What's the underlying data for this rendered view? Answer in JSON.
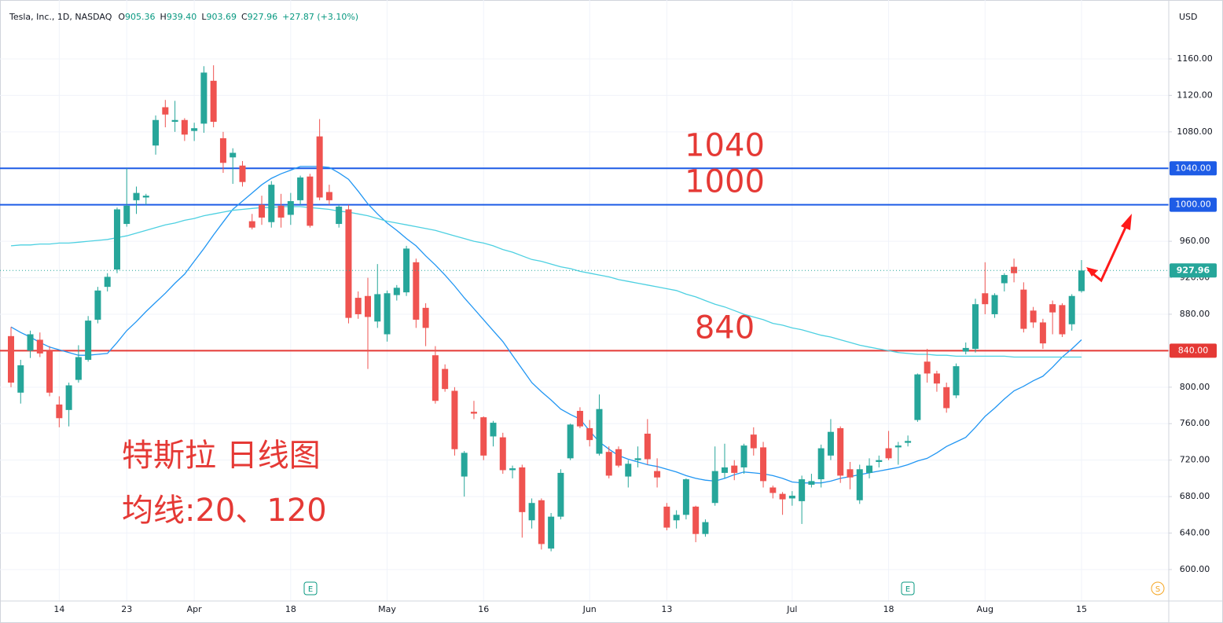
{
  "header": {
    "name": "Tesla, Inc., 1D, NASDAQ",
    "fields": [
      {
        "key": "O",
        "value": "905.36"
      },
      {
        "key": "H",
        "value": "939.40"
      },
      {
        "key": "L",
        "value": "903.69"
      },
      {
        "key": "C",
        "value": "927.96"
      }
    ],
    "change": "+27.87 (+3.10%)"
  },
  "currency": "USD",
  "notes": [
    "特斯拉 日线图",
    "均线:20、120"
  ],
  "event_labels": [
    "E",
    "E",
    "S"
  ],
  "chart_data": {
    "type": "candlestick",
    "up_color": "#26a69a",
    "down_color": "#ef5350",
    "grid": true,
    "ylim": [
      565.5,
      1224.6
    ],
    "yticks": [
      {
        "value": 600,
        "label": "600.00"
      },
      {
        "value": 640,
        "label": "640.00"
      },
      {
        "value": 680,
        "label": "680.00"
      },
      {
        "value": 720,
        "label": "720.00"
      },
      {
        "value": 760,
        "label": "760.00"
      },
      {
        "value": 800,
        "label": "800.00"
      },
      {
        "value": 840,
        "label": "840.00"
      },
      {
        "value": 880,
        "label": "880.00"
      },
      {
        "value": 920,
        "label": "920.00"
      },
      {
        "value": 960,
        "label": "960.00"
      },
      {
        "value": 1000,
        "label": "1000.00"
      },
      {
        "value": 1040,
        "label": "1040.00"
      },
      {
        "value": 1080,
        "label": "1080.00"
      },
      {
        "value": 1120,
        "label": "1120.00"
      },
      {
        "value": 1160,
        "label": "1160.00"
      }
    ],
    "categories": [
      null,
      null,
      null,
      null,
      null,
      "14",
      null,
      null,
      null,
      null,
      null,
      null,
      "23",
      null,
      null,
      null,
      null,
      null,
      null,
      "Apr",
      null,
      null,
      null,
      null,
      null,
      null,
      null,
      null,
      null,
      "18",
      null,
      null,
      null,
      null,
      null,
      null,
      null,
      null,
      null,
      "May",
      null,
      null,
      null,
      null,
      null,
      null,
      null,
      null,
      null,
      "16",
      null,
      null,
      null,
      null,
      null,
      null,
      null,
      null,
      null,
      null,
      "Jun",
      null,
      null,
      null,
      null,
      null,
      null,
      null,
      "13",
      null,
      null,
      null,
      null,
      null,
      null,
      null,
      null,
      null,
      null,
      null,
      null,
      "Jul",
      null,
      null,
      null,
      null,
      null,
      null,
      null,
      null,
      null,
      "18",
      null,
      null,
      null,
      null,
      null,
      null,
      null,
      null,
      null,
      "Aug",
      null,
      null,
      null,
      null,
      null,
      null,
      null,
      null,
      null,
      "15"
    ],
    "candles": [
      [
        856,
        866,
        800,
        805
      ],
      [
        794,
        830,
        782,
        824
      ],
      [
        840,
        862,
        832,
        858
      ],
      [
        852,
        860,
        833,
        837
      ],
      [
        840,
        845,
        790,
        794
      ],
      [
        781,
        790,
        756,
        766
      ],
      [
        775,
        805,
        757,
        802
      ],
      [
        808,
        846,
        805,
        833
      ],
      [
        830,
        878,
        828,
        873
      ],
      [
        874,
        910,
        870,
        906
      ],
      [
        910,
        925,
        905,
        921
      ],
      [
        929,
        997,
        925,
        995
      ],
      [
        979,
        1040,
        976,
        999
      ],
      [
        1005,
        1020,
        990,
        1013
      ],
      [
        1008,
        1012,
        1000,
        1010
      ],
      [
        1065,
        1098,
        1055,
        1093
      ],
      [
        1107,
        1115,
        1085,
        1099
      ],
      [
        1091,
        1114,
        1080,
        1093
      ],
      [
        1093,
        1095,
        1070,
        1077
      ],
      [
        1081,
        1090,
        1070,
        1084
      ],
      [
        1089,
        1152,
        1079,
        1145
      ],
      [
        1136,
        1153,
        1085,
        1091
      ],
      [
        1073,
        1080,
        1035,
        1046
      ],
      [
        1052,
        1062,
        1023,
        1057
      ],
      [
        1043,
        1048,
        1020,
        1025
      ],
      [
        982,
        990,
        973,
        975
      ],
      [
        1000,
        1010,
        978,
        986
      ],
      [
        981,
        1026,
        975,
        1022
      ],
      [
        999,
        1012,
        975,
        986
      ],
      [
        989,
        1013,
        978,
        1004
      ],
      [
        1005,
        1032,
        1000,
        1030
      ],
      [
        1031,
        1034,
        975,
        977
      ],
      [
        1075,
        1094,
        1005,
        1008
      ],
      [
        1014,
        1022,
        1000,
        1005
      ],
      [
        979,
        1000,
        975,
        998
      ],
      [
        995,
        1000,
        870,
        876
      ],
      [
        898,
        905,
        875,
        880
      ],
      [
        900,
        920,
        820,
        877
      ],
      [
        872,
        935,
        865,
        902
      ],
      [
        858,
        906,
        850,
        903
      ],
      [
        901,
        912,
        895,
        909
      ],
      [
        904,
        955,
        900,
        952
      ],
      [
        937,
        941,
        865,
        874
      ],
      [
        887,
        892,
        845,
        865
      ],
      [
        835,
        845,
        782,
        785
      ],
      [
        820,
        825,
        795,
        798
      ],
      [
        796,
        800,
        725,
        732
      ],
      [
        702,
        730,
        680,
        728
      ],
      [
        773,
        785,
        765,
        771
      ],
      [
        767,
        768,
        720,
        725
      ],
      [
        746,
        763,
        735,
        761
      ],
      [
        745,
        750,
        705,
        709
      ],
      [
        709,
        714,
        700,
        711
      ],
      [
        712,
        715,
        635,
        663
      ],
      [
        654,
        678,
        645,
        673
      ],
      [
        676,
        678,
        622,
        628
      ],
      [
        623,
        662,
        620,
        658
      ],
      [
        658,
        710,
        655,
        706
      ],
      [
        722,
        760,
        720,
        759
      ],
      [
        774,
        778,
        755,
        757
      ],
      [
        755,
        764,
        735,
        742
      ],
      [
        727,
        792,
        725,
        776
      ],
      [
        729,
        735,
        700,
        703
      ],
      [
        732,
        735,
        712,
        714
      ],
      [
        702,
        720,
        690,
        716
      ],
      [
        720,
        735,
        712,
        722
      ],
      [
        749,
        765,
        715,
        721
      ],
      [
        708,
        722,
        690,
        701
      ],
      [
        669,
        673,
        643,
        646
      ],
      [
        654,
        665,
        645,
        660
      ],
      [
        660,
        700,
        655,
        699
      ],
      [
        669,
        670,
        630,
        639
      ],
      [
        639,
        655,
        636,
        652
      ],
      [
        673,
        735,
        670,
        708
      ],
      [
        706,
        738,
        700,
        712
      ],
      [
        714,
        720,
        698,
        706
      ],
      [
        712,
        738,
        705,
        736
      ],
      [
        748,
        756,
        725,
        733
      ],
      [
        734,
        740,
        690,
        697
      ],
      [
        690,
        692,
        678,
        684
      ],
      [
        683,
        685,
        660,
        677
      ],
      [
        678,
        686,
        670,
        681
      ],
      [
        675,
        703,
        650,
        699
      ],
      [
        693,
        705,
        690,
        697
      ],
      [
        699,
        737,
        690,
        733
      ],
      [
        725,
        765,
        720,
        751
      ],
      [
        755,
        757,
        695,
        703
      ],
      [
        710,
        718,
        688,
        701
      ],
      [
        676,
        715,
        672,
        710
      ],
      [
        706,
        722,
        700,
        714
      ],
      [
        718,
        725,
        712,
        720
      ],
      [
        733,
        752,
        720,
        722
      ],
      [
        734,
        740,
        715,
        736
      ],
      [
        739,
        747,
        735,
        741
      ],
      [
        764,
        815,
        762,
        814
      ],
      [
        828,
        842,
        805,
        815
      ],
      [
        815,
        818,
        795,
        804
      ],
      [
        800,
        805,
        772,
        777
      ],
      [
        791,
        826,
        788,
        823
      ],
      [
        839,
        849,
        836,
        843
      ],
      [
        842,
        897,
        838,
        891
      ],
      [
        903,
        937,
        880,
        891
      ],
      [
        880,
        903,
        876,
        901
      ],
      [
        914,
        925,
        905,
        923
      ],
      [
        932,
        941,
        915,
        925
      ],
      [
        907,
        915,
        860,
        864
      ],
      [
        884,
        888,
        865,
        871
      ],
      [
        871,
        875,
        842,
        848
      ],
      [
        891,
        895,
        858,
        882
      ],
      [
        890,
        892,
        855,
        858
      ],
      [
        869,
        902,
        862,
        900
      ],
      [
        905.36,
        939.4,
        903.69,
        927.96
      ]
    ],
    "series": [
      {
        "color": "#2196f3",
        "values": [
          866,
          860,
          855,
          849,
          844,
          841,
          838,
          835,
          835,
          836,
          837,
          849,
          862,
          872,
          883,
          893,
          903,
          914,
          924,
          938,
          952,
          967,
          981,
          995,
          1004,
          1013,
          1022,
          1029,
          1034,
          1038,
          1042,
          1042,
          1042,
          1041,
          1035,
          1028,
          1015,
          1001,
          990,
          980,
          972,
          963,
          955,
          944,
          934,
          923,
          911,
          898,
          886,
          874,
          862,
          850,
          835,
          820,
          805,
          795,
          786,
          776,
          770,
          765,
          752,
          740,
          732,
          725,
          721,
          718,
          715,
          713,
          710,
          707,
          703,
          700,
          698,
          697,
          700,
          704,
          707,
          706,
          705,
          703,
          700,
          696,
          695,
          695,
          695,
          697,
          700,
          702,
          704,
          706,
          708,
          710,
          712,
          715,
          719,
          722,
          728,
          735,
          740,
          745,
          756,
          768,
          777,
          787,
          796,
          801,
          807,
          812,
          822,
          833,
          842,
          852
        ]
      },
      {
        "color": "#4dd0e1",
        "values": [
          955,
          956,
          956,
          957,
          957,
          958,
          958,
          959,
          960,
          961,
          962,
          964,
          966,
          969,
          972,
          975,
          978,
          980,
          983,
          985,
          988,
          990,
          992,
          994,
          995,
          996,
          997,
          997,
          998,
          998,
          998,
          997,
          996,
          995,
          993,
          992,
          990,
          988,
          985,
          982,
          980,
          978,
          976,
          974,
          972,
          969,
          966,
          963,
          960,
          958,
          955,
          951,
          948,
          944,
          940,
          938,
          935,
          932,
          930,
          927,
          925,
          923,
          921,
          918,
          916,
          914,
          912,
          910,
          908,
          906,
          902,
          899,
          895,
          891,
          888,
          884,
          880,
          877,
          874,
          870,
          868,
          865,
          863,
          860,
          857,
          855,
          852,
          849,
          846,
          844,
          842,
          840,
          838,
          837,
          836,
          836,
          835,
          835,
          834,
          834,
          834,
          834,
          834,
          834,
          833,
          833,
          833,
          833,
          833,
          833,
          833,
          833
        ]
      }
    ],
    "levels": [
      {
        "value": 1040,
        "tag": "1040.00",
        "color": "#1e5ce6"
      },
      {
        "value": 1000,
        "tag": "1000.00",
        "color": "#1e5ce6"
      },
      {
        "value": 840,
        "tag": "840.00",
        "color": "#e53935"
      }
    ]
  }
}
